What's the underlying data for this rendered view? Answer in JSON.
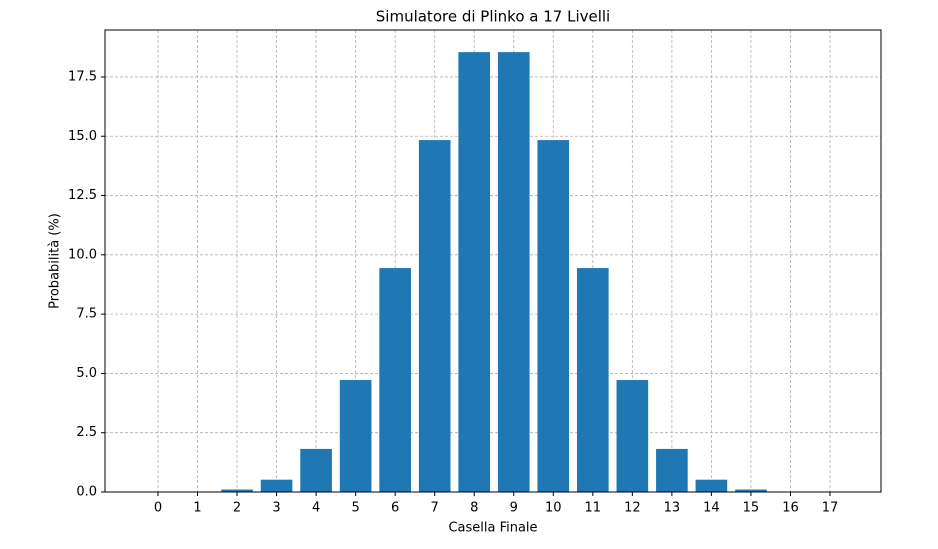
{
  "chart_data": {
    "type": "bar",
    "title": "Simulatore di Plinko a 17 Livelli",
    "x_label": "Casella Finale",
    "y_label": "Probabilità (%)",
    "x": [
      0,
      1,
      2,
      3,
      4,
      5,
      6,
      7,
      8,
      9,
      10,
      11,
      12,
      13,
      14,
      15,
      16,
      17
    ],
    "values": [
      0.0008,
      0.013,
      0.104,
      0.519,
      1.816,
      4.721,
      9.442,
      14.838,
      18.547,
      18.547,
      14.838,
      9.442,
      4.721,
      1.816,
      0.519,
      0.104,
      0.013,
      0.0008
    ],
    "color": "#1f77b4",
    "xlim": [
      -1.34,
      18.29
    ],
    "xticks": [
      0,
      1,
      2,
      3,
      4,
      5,
      6,
      7,
      8,
      9,
      10,
      11,
      12,
      13,
      14,
      15,
      16,
      17
    ],
    "ylim": [
      0,
      19.48
    ],
    "yticks": [
      {
        "value": 0,
        "label": "0.0"
      },
      {
        "value": 2.5,
        "label": "2.5"
      },
      {
        "value": 5,
        "label": "5.0"
      },
      {
        "value": 7.5,
        "label": "7.5"
      },
      {
        "value": 10,
        "label": "10.0"
      },
      {
        "value": 12.5,
        "label": "12.5"
      },
      {
        "value": 15,
        "label": "15.0"
      },
      {
        "value": 17.5,
        "label": "17.5"
      }
    ],
    "grid": true
  }
}
